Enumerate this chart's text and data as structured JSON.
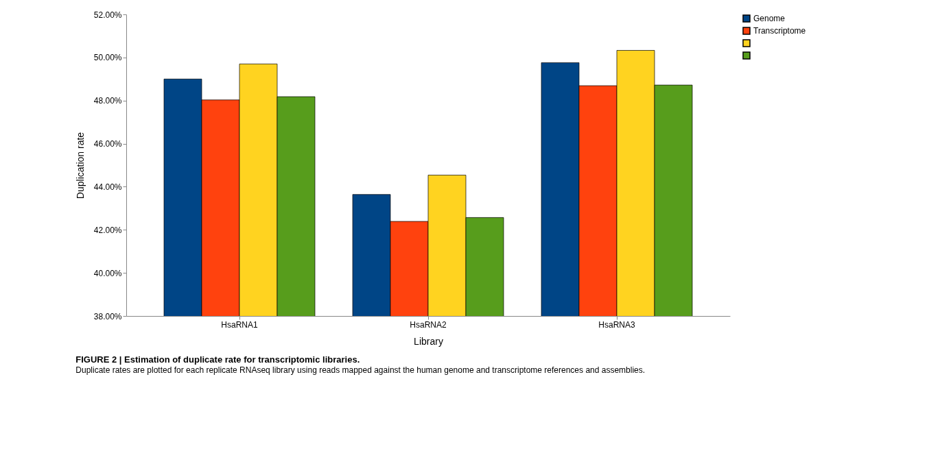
{
  "chart_data": {
    "type": "bar",
    "title": "FIGURE 2 | Estimation of duplicate rate for transcriptomic libraries.",
    "subtitle": "Duplicate rates are plotted for each replicate RNAseq library using reads mapped against the human genome and transcriptome references and assemblies.",
    "xlabel": "Library",
    "ylabel": "Duplication rate",
    "categories": [
      "HsaRNA1",
      "HsaRNA2",
      "HsaRNA3"
    ],
    "series": [
      {
        "name": "Genome",
        "color": "#004586",
        "values": [
          49.0,
          43.64,
          49.76
        ]
      },
      {
        "name": "Transcriptome",
        "color": "#ff420e",
        "values": [
          48.03,
          42.39,
          48.69
        ]
      },
      {
        "color": "#ffd320",
        "values": [
          49.7,
          44.54,
          50.33
        ]
      },
      {
        "color": "#579d1c",
        "values": [
          48.18,
          42.57,
          48.72
        ]
      }
    ],
    "ylim": [
      38,
      52
    ],
    "yticks": [
      {
        "value": 38,
        "label": "38.00%"
      },
      {
        "value": 40,
        "label": "40.00%"
      },
      {
        "value": 42,
        "label": "42.00%"
      },
      {
        "value": 44,
        "label": "44.00%"
      },
      {
        "value": 46,
        "label": "46.00%"
      },
      {
        "value": 48,
        "label": "48.00%"
      },
      {
        "value": 50,
        "label": "50.00%"
      },
      {
        "value": 52,
        "label": "52.00%"
      }
    ],
    "grid": false,
    "legend": "right"
  }
}
